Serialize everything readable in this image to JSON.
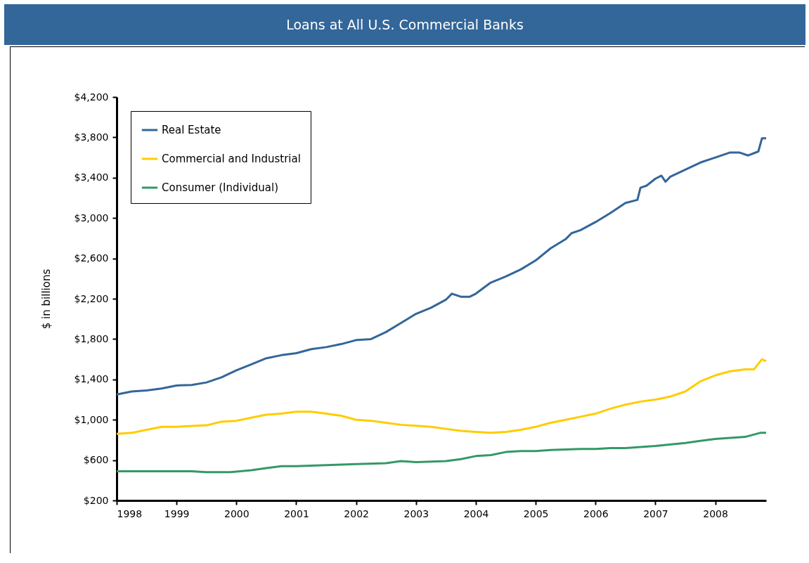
{
  "chart_data": {
    "type": "line",
    "title": "Loans at All U.S. Commercial Banks",
    "ylabel": "$ in billions",
    "xlim": [
      1998,
      2008.85
    ],
    "xticks": [
      1998,
      1999,
      2000,
      2001,
      2002,
      2003,
      2004,
      2005,
      2006,
      2007,
      2008
    ],
    "ylim": [
      200,
      4200
    ],
    "yticks": [
      {
        "value": 200,
        "label": "$200"
      },
      {
        "value": 600,
        "label": "$600"
      },
      {
        "value": 1000,
        "label": "$1,000"
      },
      {
        "value": 1400,
        "label": "$1,400"
      },
      {
        "value": 1800,
        "label": "$1,800"
      },
      {
        "value": 2200,
        "label": "$2,200"
      },
      {
        "value": 2600,
        "label": "$2,600"
      },
      {
        "value": 3000,
        "label": "$3,000"
      },
      {
        "value": 3400,
        "label": "$3,400"
      },
      {
        "value": 3800,
        "label": "$3,800"
      },
      {
        "value": 4200,
        "label": "$4,200"
      }
    ],
    "grid": false,
    "legend": "top left",
    "line_style": "solid",
    "marker": "none",
    "series": [
      {
        "name": "Real Estate",
        "color": "#336699",
        "x": [
          1998,
          1998.25,
          1998.5,
          1998.75,
          1999,
          1999.25,
          1999.5,
          1999.75,
          2000,
          2000.25,
          2000.5,
          2000.75,
          2001,
          2001.25,
          2001.5,
          2001.75,
          2002,
          2002.25,
          2002.5,
          2002.75,
          2003,
          2003.25,
          2003.5,
          2003.6,
          2003.75,
          2003.9,
          2004,
          2004.25,
          2004.5,
          2004.75,
          2005,
          2005.25,
          2005.5,
          2005.6,
          2005.75,
          2006,
          2006.25,
          2006.5,
          2006.7,
          2006.75,
          2006.85,
          2007,
          2007.1,
          2007.17,
          2007.25,
          2007.5,
          2007.75,
          2008,
          2008.25,
          2008.4,
          2008.55,
          2008.72,
          2008.78,
          2008.85
        ],
        "values": [
          1250,
          1280,
          1290,
          1310,
          1340,
          1345,
          1370,
          1420,
          1490,
          1550,
          1610,
          1640,
          1660,
          1700,
          1720,
          1750,
          1790,
          1800,
          1870,
          1960,
          2050,
          2110,
          2190,
          2250,
          2220,
          2220,
          2250,
          2360,
          2420,
          2490,
          2580,
          2700,
          2790,
          2850,
          2880,
          2960,
          3050,
          3150,
          3180,
          3300,
          3320,
          3390,
          3420,
          3360,
          3410,
          3480,
          3550,
          3600,
          3650,
          3650,
          3620,
          3660,
          3790,
          3790
        ]
      },
      {
        "name": "Commercial and Industrial",
        "color": "#ffcc00",
        "x": [
          1998,
          1998.25,
          1998.5,
          1998.75,
          1999,
          1999.5,
          1999.75,
          2000,
          2000.25,
          2000.5,
          2000.75,
          2001,
          2001.25,
          2001.5,
          2001.75,
          2002,
          2002.25,
          2002.5,
          2002.75,
          2003,
          2003.25,
          2003.5,
          2003.75,
          2004,
          2004.25,
          2004.5,
          2004.75,
          2005,
          2005.25,
          2005.5,
          2005.75,
          2006,
          2006.25,
          2006.5,
          2006.75,
          2007,
          2007.25,
          2007.5,
          2007.75,
          2008,
          2008.25,
          2008.5,
          2008.65,
          2008.78,
          2008.85
        ],
        "values": [
          860,
          870,
          900,
          930,
          930,
          945,
          980,
          990,
          1020,
          1050,
          1060,
          1080,
          1080,
          1060,
          1040,
          1000,
          990,
          970,
          950,
          940,
          930,
          910,
          890,
          880,
          870,
          880,
          900,
          930,
          970,
          1000,
          1030,
          1060,
          1110,
          1150,
          1180,
          1200,
          1230,
          1280,
          1380,
          1440,
          1480,
          1500,
          1500,
          1600,
          1580
        ]
      },
      {
        "name": "Consumer (Individual)",
        "color": "#339966",
        "x": [
          1998,
          1999,
          1999.25,
          1999.5,
          1999.9,
          2000.25,
          2000.5,
          2000.75,
          2001,
          2001.5,
          2002,
          2002.5,
          2002.75,
          2003,
          2003.5,
          2003.75,
          2004,
          2004.25,
          2004.5,
          2004.75,
          2005,
          2005.25,
          2005.75,
          2006,
          2006.25,
          2006.5,
          2006.75,
          2007,
          2007.5,
          2007.75,
          2008,
          2008.25,
          2008.5,
          2008.75,
          2008.85
        ],
        "values": [
          490,
          490,
          490,
          480,
          480,
          500,
          520,
          540,
          540,
          550,
          560,
          570,
          590,
          580,
          590,
          610,
          640,
          650,
          680,
          690,
          690,
          700,
          710,
          710,
          720,
          720,
          730,
          740,
          770,
          790,
          810,
          820,
          830,
          870,
          870
        ]
      }
    ]
  }
}
